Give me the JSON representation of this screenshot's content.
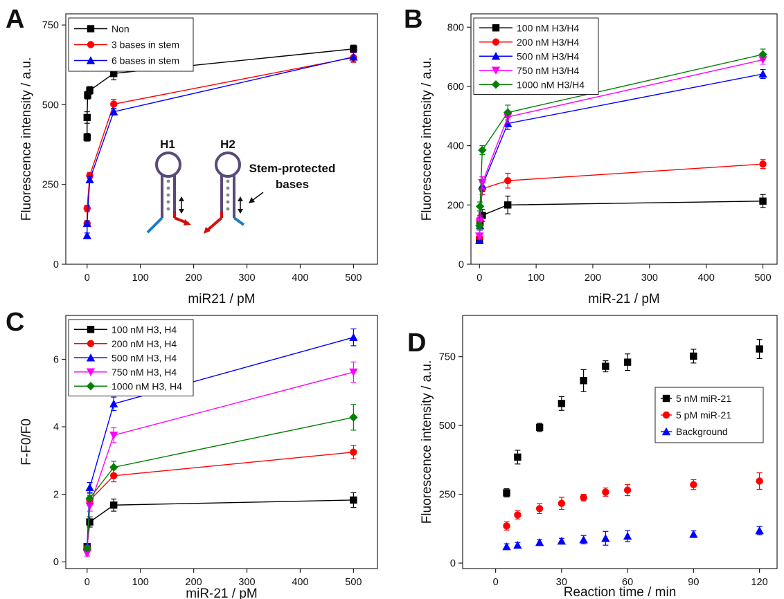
{
  "chart_data": [
    {
      "panel": "A",
      "type": "line",
      "xlabel": "miR21 / pM",
      "ylabel": "Fluorescence intensity / a.u.",
      "xlim": [
        -40,
        545
      ],
      "ylim": [
        0,
        785
      ],
      "xticks": [
        0,
        100,
        200,
        300,
        400,
        500
      ],
      "yticks": [
        0,
        250,
        500,
        750
      ],
      "legend_position": "top-left",
      "series": [
        {
          "name": "Non",
          "color": "#000000",
          "marker": "square",
          "x": [
            0,
            0,
            1,
            5,
            50,
            500
          ],
          "y": [
            398,
            460,
            530,
            545,
            598,
            675
          ],
          "err": [
            12,
            18,
            12,
            12,
            20,
            12
          ]
        },
        {
          "name": "3 bases in stem",
          "color": "#ff0000",
          "marker": "circle",
          "x": [
            0,
            0,
            5,
            50,
            500
          ],
          "y": [
            128,
            175,
            278,
            502,
            648
          ],
          "err": [
            8,
            10,
            10,
            15,
            15
          ]
        },
        {
          "name": "6 bases in stem",
          "color": "#0000ff",
          "marker": "triangle",
          "x": [
            0,
            0,
            5,
            50,
            500
          ],
          "y": [
            90,
            128,
            265,
            478,
            650
          ],
          "err": [
            8,
            8,
            10,
            10,
            15
          ]
        }
      ],
      "annotations": {
        "h1": "H1",
        "h2": "H2",
        "stem_line1": "Stem-protected",
        "stem_line2": "bases"
      }
    },
    {
      "panel": "B",
      "type": "line",
      "xlabel": "miR-21 / pM",
      "ylabel": "Fluorescence intensity / a.u.",
      "xlim": [
        -15,
        525
      ],
      "ylim": [
        0,
        845
      ],
      "xticks": [
        0,
        100,
        200,
        300,
        400,
        500
      ],
      "yticks": [
        0,
        200,
        400,
        600,
        800
      ],
      "legend_position": "top-left",
      "series": [
        {
          "name": "100 nM  H3/H4",
          "color": "#000000",
          "marker": "square",
          "x": [
            0,
            1,
            5,
            50,
            500
          ],
          "y": [
            80,
            140,
            165,
            200,
            213
          ],
          "err": [
            10,
            15,
            20,
            30,
            22
          ]
        },
        {
          "name": "200 nM  H3/H4",
          "color": "#ff0000",
          "marker": "circle",
          "x": [
            0,
            1,
            5,
            50,
            500
          ],
          "y": [
            90,
            150,
            255,
            282,
            338
          ],
          "err": [
            10,
            15,
            20,
            25,
            15
          ]
        },
        {
          "name": "500 nM  H3/H4",
          "color": "#0000ff",
          "marker": "triangle",
          "x": [
            0,
            1,
            5,
            50,
            500
          ],
          "y": [
            80,
            130,
            265,
            475,
            642
          ],
          "err": [
            10,
            15,
            20,
            20,
            15
          ]
        },
        {
          "name": "750 nM  H3/H4",
          "color": "#ff00ff",
          "marker": "triangle-down",
          "x": [
            0,
            1,
            5,
            50,
            500
          ],
          "y": [
            95,
            145,
            275,
            497,
            690
          ],
          "err": [
            10,
            15,
            20,
            20,
            15
          ]
        },
        {
          "name": "1000 nM H3/H4",
          "color": "#008000",
          "marker": "diamond",
          "x": [
            0,
            1,
            5,
            50,
            500
          ],
          "y": [
            130,
            195,
            385,
            512,
            708
          ],
          "err": [
            10,
            15,
            15,
            25,
            18
          ]
        }
      ]
    },
    {
      "panel": "C",
      "type": "line",
      "xlabel": "miR-21 / pM",
      "ylabel": "F-F0/F0",
      "xlim": [
        -40,
        545
      ],
      "ylim": [
        -0.2,
        7.3
      ],
      "xticks": [
        0,
        100,
        200,
        300,
        400,
        500
      ],
      "yticks": [
        0,
        2,
        4,
        6
      ],
      "legend_position": "top-left",
      "series": [
        {
          "name": "100 nM   H3, H4",
          "color": "#000000",
          "marker": "square",
          "x": [
            0,
            5,
            50,
            500
          ],
          "y": [
            0.45,
            1.18,
            1.68,
            1.83
          ],
          "err": [
            0.08,
            0.15,
            0.18,
            0.22
          ]
        },
        {
          "name": "200 nM   H3, H4",
          "color": "#ff0000",
          "marker": "circle",
          "x": [
            0,
            5,
            50,
            500
          ],
          "y": [
            0.4,
            1.82,
            2.55,
            3.25
          ],
          "err": [
            0.08,
            0.15,
            0.18,
            0.2
          ]
        },
        {
          "name": "500 nM   H3, H4",
          "color": "#0000ff",
          "marker": "triangle",
          "x": [
            0,
            5,
            50,
            500
          ],
          "y": [
            0.45,
            2.2,
            4.68,
            6.65
          ],
          "err": [
            0.08,
            0.15,
            0.2,
            0.25
          ]
        },
        {
          "name": "750 nM   H3, H4",
          "color": "#ff00ff",
          "marker": "triangle-down",
          "x": [
            0,
            5,
            50,
            500
          ],
          "y": [
            0.25,
            1.65,
            3.75,
            5.62
          ],
          "err": [
            0.08,
            0.15,
            0.22,
            0.3
          ]
        },
        {
          "name": "1000 nM H3, H4",
          "color": "#008000",
          "marker": "diamond",
          "x": [
            0,
            5,
            50,
            500
          ],
          "y": [
            0.4,
            1.88,
            2.8,
            4.28
          ],
          "err": [
            0.08,
            0.15,
            0.18,
            0.38
          ]
        }
      ]
    },
    {
      "panel": "D",
      "type": "scatter",
      "xlabel": "Reaction time / min",
      "ylabel": "Fluorescence intensity / a.u.",
      "xlim": [
        -15,
        128
      ],
      "ylim": [
        -20,
        900
      ],
      "xticks": [
        0,
        30,
        60,
        90,
        120
      ],
      "yticks": [
        0,
        250,
        500,
        750
      ],
      "legend_position": "right",
      "series": [
        {
          "name": "5 nM miR-21",
          "color": "#000000",
          "marker": "square",
          "x": [
            5,
            10,
            20,
            30,
            40,
            50,
            60,
            90,
            120
          ],
          "y": [
            255,
            385,
            493,
            580,
            663,
            715,
            730,
            752,
            778
          ],
          "err": [
            15,
            25,
            15,
            25,
            40,
            20,
            30,
            25,
            35
          ]
        },
        {
          "name": "5 pM miR-21",
          "color": "#ff0000",
          "marker": "circle",
          "x": [
            5,
            10,
            20,
            30,
            40,
            50,
            60,
            90,
            120
          ],
          "y": [
            135,
            175,
            198,
            217,
            238,
            258,
            265,
            285,
            298
          ],
          "err": [
            15,
            15,
            18,
            22,
            12,
            15,
            20,
            18,
            30
          ]
        },
        {
          "name": "Background",
          "color": "#0000ff",
          "marker": "triangle",
          "x": [
            5,
            10,
            20,
            30,
            40,
            50,
            60,
            90,
            120
          ],
          "y": [
            60,
            65,
            75,
            80,
            85,
            90,
            98,
            105,
            118
          ],
          "err": [
            10,
            10,
            10,
            10,
            15,
            25,
            20,
            12,
            15
          ]
        }
      ]
    }
  ]
}
